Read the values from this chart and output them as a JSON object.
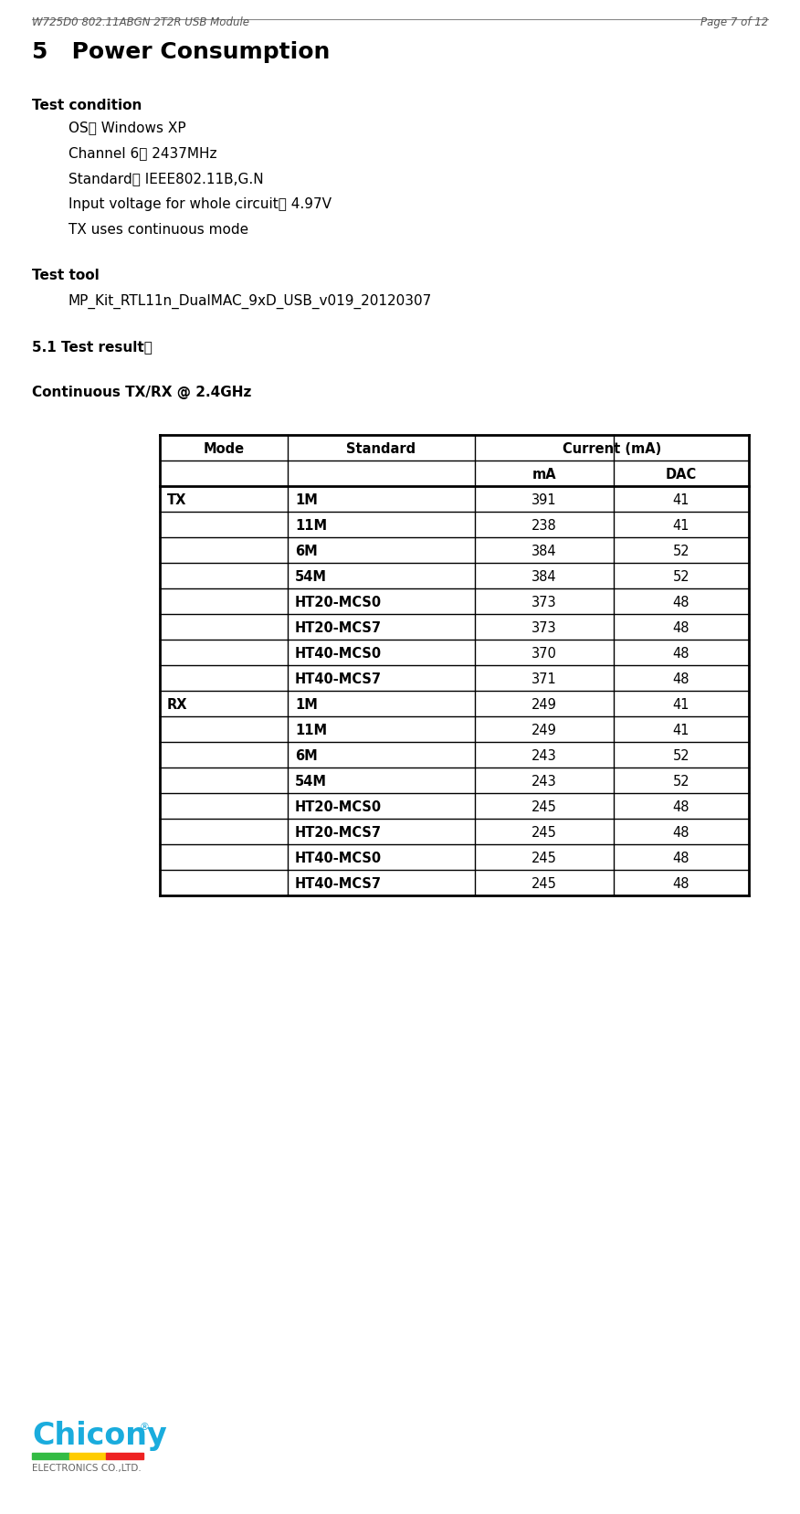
{
  "header_left": "W725D0 802.11ABGN 2T2R USB Module",
  "header_right": "Page 7 of 12",
  "section_title": "5   Power Consumption",
  "test_condition_label": "Test condition",
  "test_conditions": [
    "OS： Windows XP",
    "Channel 6： 2437MHz",
    "Standard： IEEE802.11B,G.N",
    "Input voltage for whole circuit： 4.97V",
    "TX uses continuous mode"
  ],
  "test_tool_label": "Test tool",
  "test_tool_value": "MP_Kit_RTL11n_DualMAC_9xD_USB_v019_20120307",
  "result_label": "5.1 Test result：",
  "continuous_label": "Continuous TX/RX @ 2.4GHz",
  "table_data": [
    [
      "TX",
      "1M",
      "391",
      "41"
    ],
    [
      "",
      "11M",
      "238",
      "41"
    ],
    [
      "",
      "6M",
      "384",
      "52"
    ],
    [
      "",
      "54M",
      "384",
      "52"
    ],
    [
      "",
      "HT20-MCS0",
      "373",
      "48"
    ],
    [
      "",
      "HT20-MCS7",
      "373",
      "48"
    ],
    [
      "",
      "HT40-MCS0",
      "370",
      "48"
    ],
    [
      "",
      "HT40-MCS7",
      "371",
      "48"
    ],
    [
      "RX",
      "1M",
      "249",
      "41"
    ],
    [
      "",
      "11M",
      "249",
      "41"
    ],
    [
      "",
      "6M",
      "243",
      "52"
    ],
    [
      "",
      "54M",
      "243",
      "52"
    ],
    [
      "",
      "HT20-MCS0",
      "245",
      "48"
    ],
    [
      "",
      "HT20-MCS7",
      "245",
      "48"
    ],
    [
      "",
      "HT40-MCS0",
      "245",
      "48"
    ],
    [
      "",
      "HT40-MCS7",
      "245",
      "48"
    ]
  ],
  "bg_color": "#ffffff",
  "text_color": "#000000",
  "logo_color": "#1aacdd",
  "logo_bar_colors": [
    "#33bb44",
    "#ffcc00",
    "#ee2222"
  ],
  "logo_sub_color": "#666666"
}
